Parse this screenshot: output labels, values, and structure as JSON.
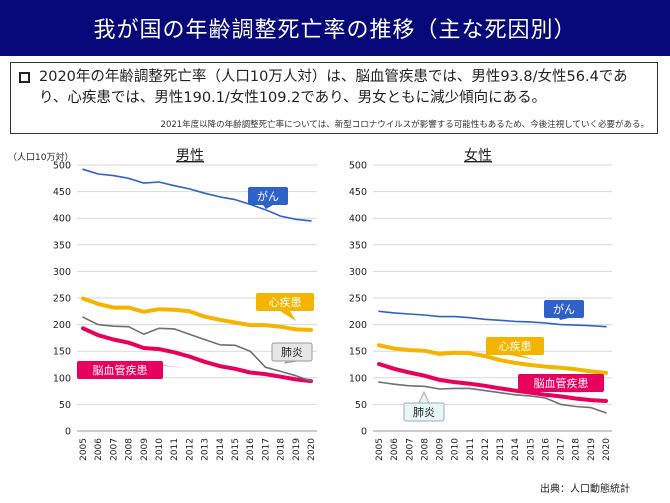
{
  "header": {
    "title": "我が国の年齢調整死亡率の推移（主な死因別）"
  },
  "summary": {
    "main_text": "2020年の年齢調整死亡率（人口10万人対）は、脳血管疾患では、男性93.8/女性56.4であり、心疾患では、男性190.1/女性109.2であり、男女ともに減少傾向にある。",
    "note": "2021年度以降の年齢調整死亡率については、新型コロナウイルスが影響する可能性もあるため、今後注視していく必要がある。"
  },
  "source": "出典：人口動態統計",
  "colors": {
    "cancer": "#2e62c9",
    "heart": "#f5b400",
    "cerebro": "#e8005f",
    "pneumonia": "#707070"
  },
  "chart_data": [
    {
      "type": "line",
      "title": "男性",
      "ylabel": "（人口10万対）",
      "ylim": [
        0,
        500
      ],
      "yticks": [
        0,
        50,
        100,
        150,
        200,
        250,
        300,
        350,
        400,
        450,
        500
      ],
      "categories": [
        "2005",
        "2006",
        "2007",
        "2008",
        "2009",
        "2010",
        "2011",
        "2012",
        "2013",
        "2014",
        "2015",
        "2016",
        "2017",
        "2018",
        "2019",
        "2020"
      ],
      "series": [
        {
          "name": "がん",
          "color_key": "cancer",
          "values": [
            492,
            483,
            480,
            475,
            466,
            468,
            461,
            455,
            447,
            440,
            435,
            426,
            416,
            404,
            398,
            395
          ]
        },
        {
          "name": "心疾患",
          "color_key": "heart",
          "values": [
            249,
            239,
            232,
            232,
            224,
            229,
            228,
            225,
            215,
            209,
            204,
            199,
            199,
            196,
            191,
            190.1
          ]
        },
        {
          "name": "脳血管疾患",
          "color_key": "cerebro",
          "values": [
            193,
            180,
            172,
            166,
            156,
            154,
            148,
            140,
            130,
            122,
            117,
            110,
            107,
            102,
            97,
            93.8
          ]
        },
        {
          "name": "肺炎",
          "color_key": "pneumonia",
          "values": [
            214,
            200,
            197,
            196,
            182,
            193,
            192,
            182,
            172,
            162,
            161,
            150,
            120,
            112,
            104,
            94
          ]
        }
      ]
    },
    {
      "type": "line",
      "title": "女性",
      "ylim": [
        0,
        500
      ],
      "yticks": [
        0,
        50,
        100,
        150,
        200,
        250,
        300,
        350,
        400,
        450,
        500
      ],
      "categories": [
        "2005",
        "2006",
        "2007",
        "2008",
        "2009",
        "2010",
        "2011",
        "2012",
        "2013",
        "2014",
        "2015",
        "2016",
        "2017",
        "2018",
        "2019",
        "2020"
      ],
      "series": [
        {
          "name": "がん",
          "color_key": "cancer",
          "values": [
            225,
            222,
            220,
            218,
            215,
            215,
            213,
            210,
            208,
            206,
            205,
            203,
            200,
            199,
            198,
            196
          ]
        },
        {
          "name": "心疾患",
          "color_key": "heart",
          "values": [
            161,
            155,
            152,
            151,
            145,
            147,
            146,
            141,
            133,
            128,
            124,
            121,
            119,
            116,
            112,
            109.2
          ]
        },
        {
          "name": "脳血管疾患",
          "color_key": "cerebro",
          "values": [
            126,
            117,
            110,
            104,
            96,
            92,
            89,
            85,
            80,
            76,
            72,
            68,
            65,
            61,
            58,
            56.4
          ]
        },
        {
          "name": "肺炎",
          "color_key": "pneumonia",
          "values": [
            92,
            88,
            85,
            84,
            79,
            80,
            80,
            76,
            72,
            68,
            66,
            62,
            50,
            46,
            44,
            34
          ]
        }
      ]
    }
  ]
}
